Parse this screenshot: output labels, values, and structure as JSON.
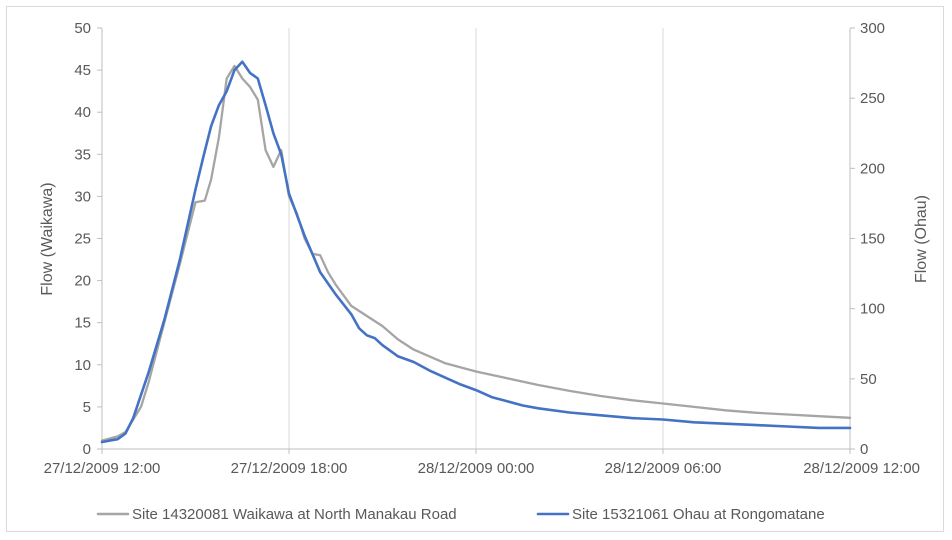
{
  "chart_data": {
    "type": "line",
    "title": "",
    "xlabel": "",
    "ylabel": "Flow (Waikawa)",
    "y2label": "Flow (Ohau)",
    "x_ticks": [
      "27/12/2009 12:00",
      "27/12/2009 18:00",
      "28/12/2009 00:00",
      "28/12/2009 06:00",
      "28/12/2009 12:00"
    ],
    "xlim_hours": [
      0,
      24
    ],
    "ylim": [
      0,
      50
    ],
    "y_ticks": [
      0,
      5,
      10,
      15,
      20,
      25,
      30,
      35,
      40,
      45,
      50
    ],
    "y2lim": [
      0,
      300
    ],
    "y2_ticks": [
      0,
      50,
      100,
      150,
      200,
      250,
      300
    ],
    "grid": "vertical",
    "legend_position": "bottom",
    "series": [
      {
        "name": "Site 14320081 Waikawa at North Manakau Road",
        "axis": "left",
        "color": "#a5a5a5",
        "x": [
          0,
          0.5,
          0.75,
          1,
          1.25,
          1.5,
          2,
          2.5,
          3,
          3.3,
          3.5,
          3.75,
          4,
          4.25,
          4.5,
          4.75,
          5,
          5.25,
          5.5,
          5.75,
          6,
          6.25,
          6.5,
          6.75,
          7,
          7.25,
          7.5,
          8,
          8.5,
          9,
          9.5,
          10,
          11,
          12,
          13,
          14,
          15,
          16,
          17,
          18,
          19,
          20,
          21,
          22,
          23,
          24
        ],
        "y": [
          1.0,
          1.5,
          2.0,
          3.5,
          5.0,
          8.0,
          15.0,
          22.0,
          29.3,
          29.5,
          32.0,
          37.0,
          44.0,
          45.5,
          44.0,
          43.0,
          41.5,
          35.5,
          33.5,
          35.5,
          30.0,
          28.0,
          25.0,
          23.2,
          23.0,
          21.0,
          19.5,
          17.0,
          15.8,
          14.6,
          13.0,
          11.8,
          10.2,
          9.2,
          8.4,
          7.6,
          6.9,
          6.3,
          5.8,
          5.4,
          5.0,
          4.6,
          4.3,
          4.1,
          3.9,
          3.7
        ]
      },
      {
        "name": "Site 15321061 Ohau at Rongomatane",
        "axis": "right",
        "color": "#4472c4",
        "x": [
          0,
          0.5,
          0.75,
          1,
          1.5,
          2,
          2.5,
          3,
          3.25,
          3.5,
          3.75,
          4,
          4.25,
          4.5,
          4.75,
          5,
          5.25,
          5.5,
          5.75,
          6,
          6.5,
          7,
          7.5,
          8,
          8.25,
          8.5,
          8.75,
          9,
          9.5,
          10,
          10.5,
          11,
          11.5,
          12,
          12.5,
          13,
          13.5,
          14,
          15,
          16,
          17,
          18,
          19,
          20,
          21,
          22,
          23,
          24
        ],
        "y": [
          5,
          7,
          11,
          22,
          55,
          92,
          135,
          185,
          208,
          230,
          245,
          255,
          270,
          276,
          268,
          264,
          245,
          225,
          210,
          182,
          152,
          126,
          110,
          96,
          86,
          81,
          79,
          74,
          66,
          62,
          56,
          51,
          46,
          42,
          37,
          34,
          31,
          29,
          26,
          24,
          22,
          21,
          19,
          18,
          17,
          16,
          15,
          15
        ]
      }
    ]
  }
}
